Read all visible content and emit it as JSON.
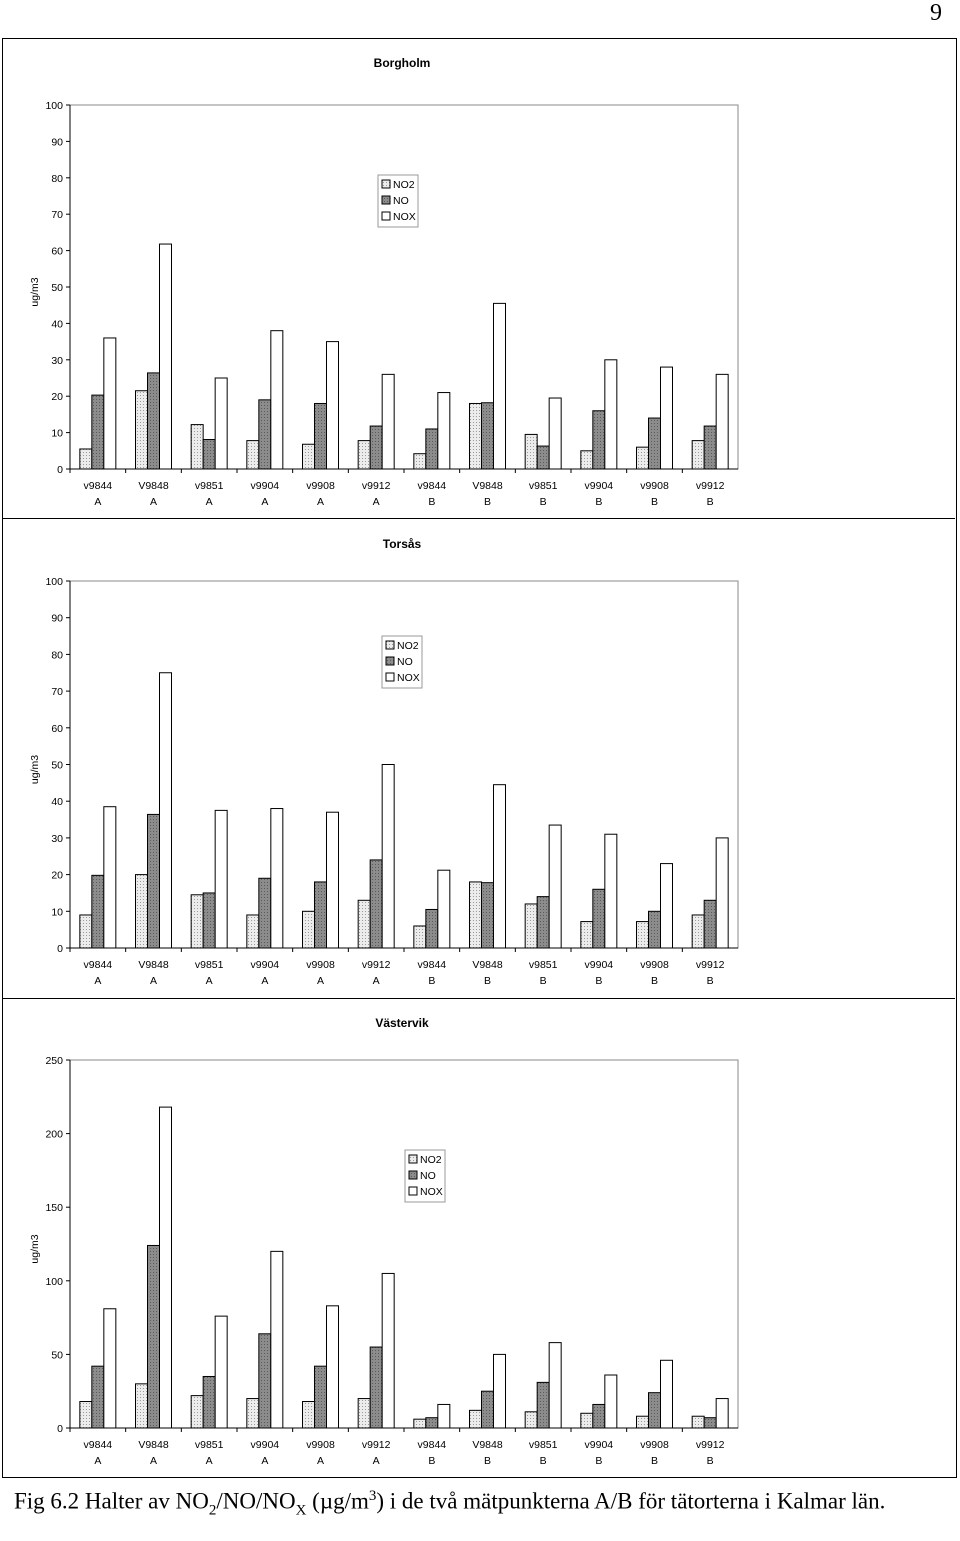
{
  "page_number": "9",
  "caption": {
    "prefix": "Fig 6.2 Halter av NO",
    "sub1": "2",
    "mid1": "/NO/NO",
    "sub2": "X",
    "mid2": " (µg/m",
    "sup": "3",
    "suffix": ") i de två mätpunkterna A/B för tätorterna i Kalmar län."
  },
  "colors": {
    "NO2": "#d9d9d9",
    "NO": "#7f7f7f",
    "NOX": "#ffffff"
  },
  "chart_data": [
    {
      "type": "bar",
      "title": "Borgholm",
      "ylabel": "ug/m3",
      "xlabel": "",
      "ylim": [
        0,
        100
      ],
      "yticks": [
        0,
        10,
        20,
        30,
        40,
        50,
        60,
        70,
        80,
        90,
        100
      ],
      "legend_position": "top-center",
      "grid": false,
      "categories": [
        [
          "v9844",
          "A"
        ],
        [
          "V9848",
          "A"
        ],
        [
          "v9851",
          "A"
        ],
        [
          "v9904",
          "A"
        ],
        [
          "v9908",
          "A"
        ],
        [
          "v9912",
          "A"
        ],
        [
          "v9844",
          "B"
        ],
        [
          "V9848",
          "B"
        ],
        [
          "v9851",
          "B"
        ],
        [
          "v9904",
          "B"
        ],
        [
          "v9908",
          "B"
        ],
        [
          "v9912",
          "B"
        ]
      ],
      "series": [
        {
          "name": "NO2",
          "values": [
            5.5,
            21.5,
            12.2,
            7.8,
            6.8,
            7.8,
            4.2,
            18,
            9.5,
            5,
            6,
            7.8
          ]
        },
        {
          "name": "NO",
          "values": [
            20.3,
            26.4,
            8.1,
            19,
            18,
            11.8,
            11,
            18.2,
            6.3,
            16,
            14,
            11.8
          ]
        },
        {
          "name": "NOX",
          "values": [
            36,
            61.8,
            25,
            38,
            35,
            26,
            21,
            45.5,
            19.5,
            30,
            28,
            26
          ]
        }
      ]
    },
    {
      "type": "bar",
      "title": "Torsås",
      "ylabel": "ug/m3",
      "xlabel": "",
      "ylim": [
        0,
        100
      ],
      "yticks": [
        0,
        10,
        20,
        30,
        40,
        50,
        60,
        70,
        80,
        90,
        100
      ],
      "legend_position": "top-center",
      "grid": false,
      "categories": [
        [
          "v9844",
          "A"
        ],
        [
          "V9848",
          "A"
        ],
        [
          "v9851",
          "A"
        ],
        [
          "v9904",
          "A"
        ],
        [
          "v9908",
          "A"
        ],
        [
          "v9912",
          "A"
        ],
        [
          "v9844",
          "B"
        ],
        [
          "V9848",
          "B"
        ],
        [
          "v9851",
          "B"
        ],
        [
          "v9904",
          "B"
        ],
        [
          "v9908",
          "B"
        ],
        [
          "v9912",
          "B"
        ]
      ],
      "series": [
        {
          "name": "NO2",
          "values": [
            9,
            20,
            14.5,
            9,
            10,
            13,
            6,
            18,
            12,
            7.2,
            7.2,
            9
          ]
        },
        {
          "name": "NO",
          "values": [
            19.8,
            36.4,
            15,
            19,
            18,
            24,
            10.5,
            17.8,
            14,
            16,
            10,
            13
          ]
        },
        {
          "name": "NOX",
          "values": [
            38.5,
            75,
            37.5,
            38,
            37,
            50,
            21.2,
            44.5,
            33.5,
            31,
            23,
            30
          ]
        }
      ]
    },
    {
      "type": "bar",
      "title": "Västervik",
      "ylabel": "ug/m3",
      "xlabel": "",
      "ylim": [
        0,
        250
      ],
      "yticks": [
        0,
        50,
        100,
        150,
        200,
        250
      ],
      "legend_position": "top-center",
      "grid": false,
      "categories": [
        [
          "v9844",
          "A"
        ],
        [
          "V9848",
          "A"
        ],
        [
          "v9851",
          "A"
        ],
        [
          "v9904",
          "A"
        ],
        [
          "v9908",
          "A"
        ],
        [
          "v9912",
          "A"
        ],
        [
          "v9844",
          "B"
        ],
        [
          "V9848",
          "B"
        ],
        [
          "v9851",
          "B"
        ],
        [
          "v9904",
          "B"
        ],
        [
          "v9908",
          "B"
        ],
        [
          "v9912",
          "B"
        ]
      ],
      "series": [
        {
          "name": "NO2",
          "values": [
            18,
            30,
            22,
            20,
            18,
            20,
            6,
            12,
            11,
            10,
            8,
            8
          ]
        },
        {
          "name": "NO",
          "values": [
            42,
            124,
            35,
            64,
            42,
            55,
            7,
            25,
            31,
            16,
            24,
            7
          ]
        },
        {
          "name": "NOX",
          "values": [
            81,
            218,
            76,
            120,
            83,
            105,
            16,
            50,
            58,
            36,
            46,
            20
          ]
        }
      ]
    }
  ]
}
